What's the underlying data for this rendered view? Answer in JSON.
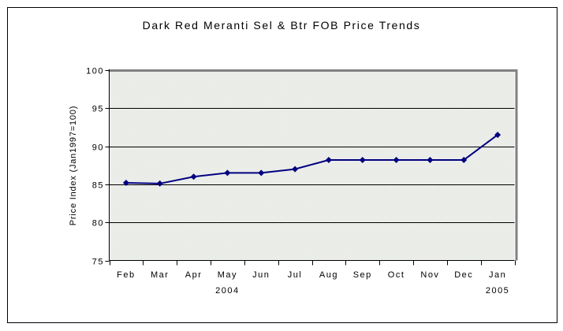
{
  "page": {
    "background_color": "#ffffff",
    "border_color": "#000000"
  },
  "chart_data": {
    "type": "line",
    "title": "Dark Red Meranti Sel & Btr FOB Price Trends",
    "xlabel": "",
    "ylabel": "Price Index (Jan1997=100)",
    "categories": [
      "Feb",
      "Mar",
      "Apr",
      "May",
      "Jun",
      "Jul",
      "Aug",
      "Sep",
      "Oct",
      "Nov",
      "Dec",
      "Jan"
    ],
    "year_labels": [
      {
        "text": "2004",
        "under_category": "May"
      },
      {
        "text": "2005",
        "under_category": "Jan"
      }
    ],
    "series": [
      {
        "name": "Dark Red Meranti Sel & Btr FOB price index",
        "color": "#000080",
        "marker": "diamond",
        "values": [
          85.2,
          85.1,
          86.0,
          86.5,
          86.5,
          87.0,
          88.2,
          88.2,
          88.2,
          88.2,
          88.2,
          91.5
        ]
      }
    ],
    "ylim": [
      75,
      100
    ],
    "yticks": [
      75,
      80,
      85,
      90,
      95,
      100
    ],
    "grid": "horizontal",
    "legend": "none",
    "colors": {
      "line": "#000080",
      "axis": "#000000",
      "gridline": "#000000",
      "plot_border_shadow": "#808080",
      "plot_fill_base": "#ffffff",
      "plot_fill_dither": "#d6dad2"
    }
  }
}
